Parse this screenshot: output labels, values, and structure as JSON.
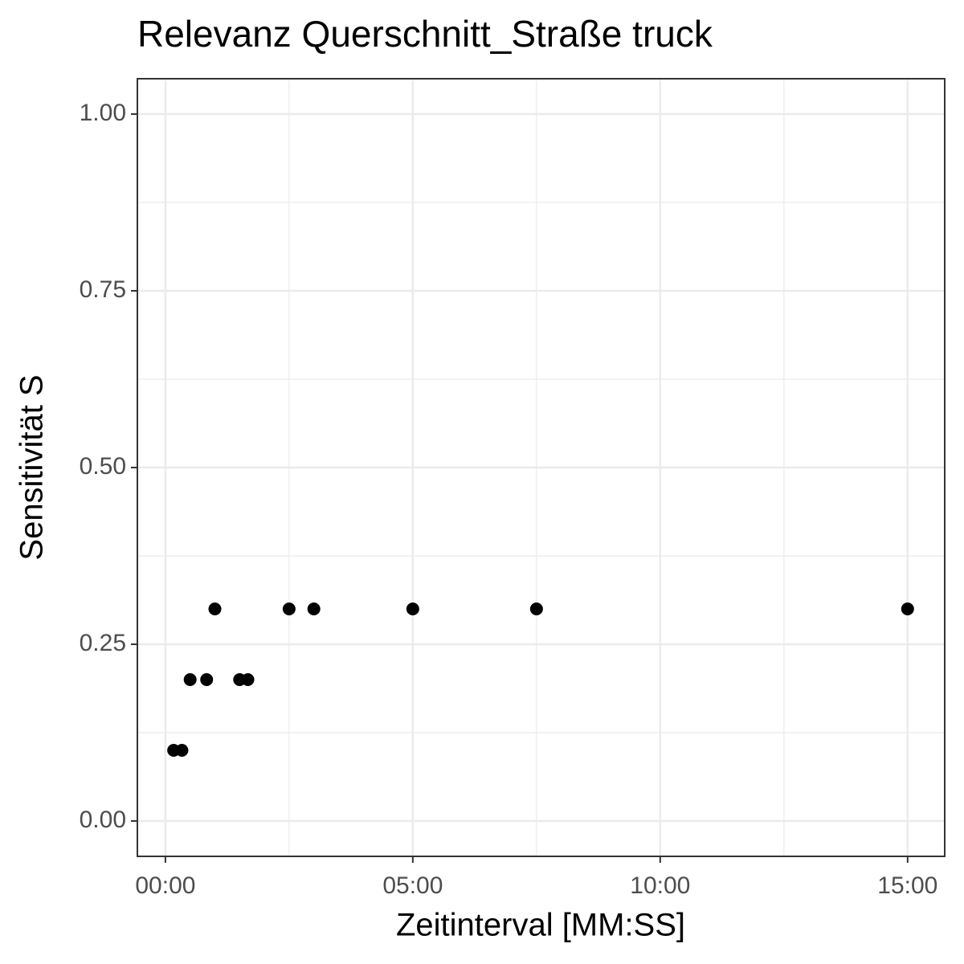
{
  "chart_data": {
    "type": "scatter",
    "title": "Relevanz Querschnitt_Straße truck",
    "x_label": "Zeitinterval [MM:SS]",
    "y_label": "Sensitivität S",
    "x": [
      10,
      20,
      30,
      50,
      90,
      100,
      60,
      150,
      180,
      300,
      450,
      900
    ],
    "values": [
      0.1,
      0.1,
      0.2,
      0.2,
      0.2,
      0.2,
      0.3,
      0.3,
      0.3,
      0.3,
      0.3,
      0.3
    ],
    "color": "#000000",
    "xlim": [
      -34,
      945
    ],
    "ylim": [
      -0.05,
      1.05
    ],
    "xticks": [
      {
        "value": 0,
        "label": "00:00"
      },
      {
        "value": 300,
        "label": "05:00"
      },
      {
        "value": 600,
        "label": "10:00"
      },
      {
        "value": 900,
        "label": "15:00"
      }
    ],
    "yticks": [
      {
        "value": 0,
        "label": "0.00"
      },
      {
        "value": 0.25,
        "label": "0.25"
      },
      {
        "value": 0.5,
        "label": "0.50"
      },
      {
        "value": 0.75,
        "label": "0.75"
      },
      {
        "value": 1,
        "label": "1.00"
      }
    ],
    "xminor": [
      150,
      450,
      750
    ],
    "yminor": [
      0.125,
      0.375,
      0.625,
      0.875
    ],
    "grid": true
  }
}
